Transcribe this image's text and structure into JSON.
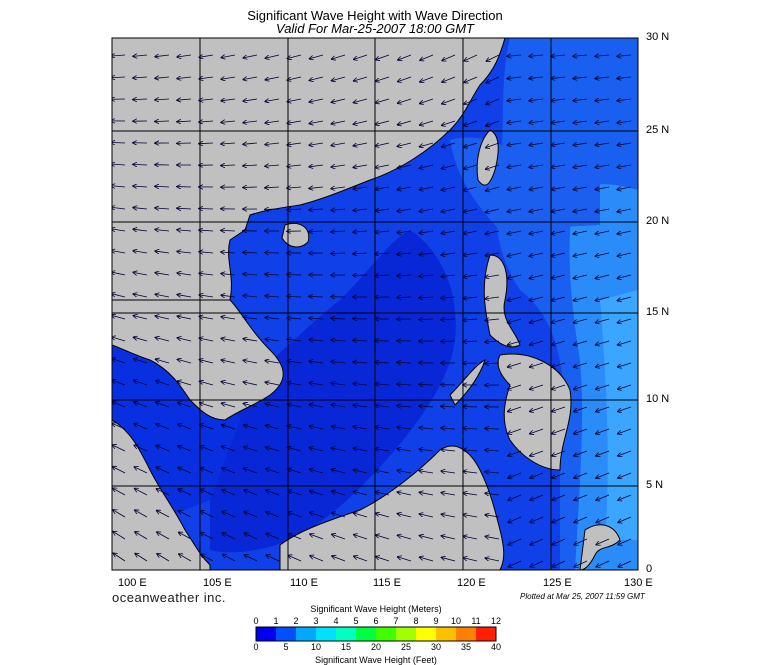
{
  "title": "Significant Wave Height with Wave Direction",
  "subtitle": "Valid For Mar-25-2007 18:00 GMT",
  "brand": "oceanweather inc.",
  "plotted_text": "Plotted at Mar 25, 2007 11:59 GMT",
  "map": {
    "lat_range": [
      0,
      30
    ],
    "lon_range": [
      100,
      130
    ],
    "lat_labels": [
      "30 N",
      "25 N",
      "20 N",
      "15 N",
      "10 N",
      "5 N",
      "0"
    ],
    "lon_labels": [
      "100 E",
      "105 E",
      "110 E",
      "115 E",
      "120 E",
      "125 E",
      "130 E"
    ],
    "land_color": "#c0c0c0",
    "arrow_color": "#000033"
  },
  "legend": {
    "title_top": "Significant Wave Height (Meters)",
    "title_bottom": "Significant Wave Height (Feet)",
    "meters_ticks": [
      "0",
      "1",
      "2",
      "3",
      "4",
      "5",
      "6",
      "7",
      "8",
      "9",
      "10",
      "11",
      "12"
    ],
    "feet_ticks": [
      "0",
      "5",
      "10",
      "15",
      "20",
      "25",
      "30",
      "35",
      "40"
    ],
    "colors": [
      "#0000ee",
      "#0050ff",
      "#00a8ff",
      "#00e0ff",
      "#00ffc0",
      "#00ff40",
      "#40ff00",
      "#a0ff00",
      "#ffff00",
      "#ffc000",
      "#ff8000",
      "#ff2000"
    ]
  }
}
